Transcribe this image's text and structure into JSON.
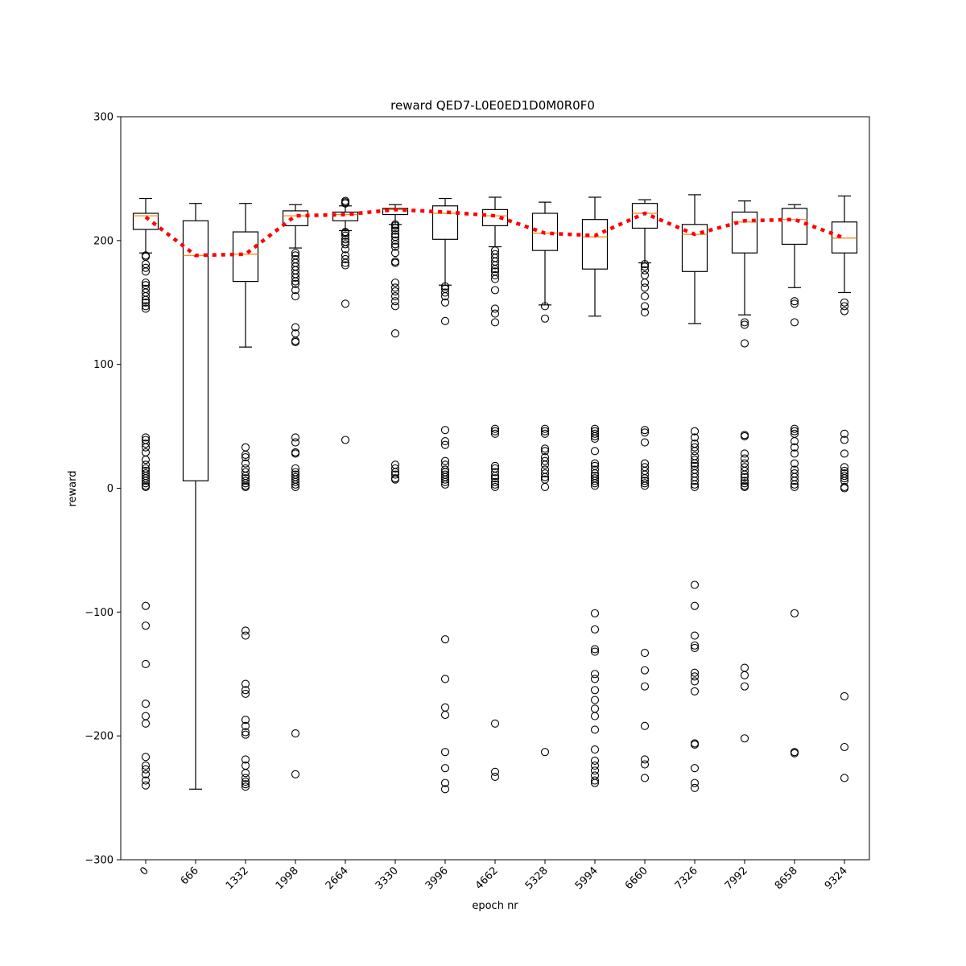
{
  "chart_data": {
    "type": "box",
    "title": "reward QED7-L0E0ED1D0M0R0F0",
    "xlabel": "epoch nr",
    "ylabel": "reward",
    "ylim": [
      -300,
      300
    ],
    "yticks": [
      -300,
      -200,
      -100,
      0,
      100,
      200,
      300
    ],
    "ytick_labels": [
      "−300",
      "−200",
      "−100",
      "0",
      "100",
      "200",
      "300"
    ],
    "grid": false,
    "colors": {
      "box": "#000000",
      "median": "#ff7f0e",
      "mean_line": "#ff0000"
    },
    "boxes": [
      {
        "epoch": "0",
        "q1": 209,
        "median": 220,
        "q3": 222,
        "whisker_low": 190,
        "whisker_high": 234,
        "outliers": [
          188,
          187,
          181,
          178,
          175,
          166,
          164,
          161,
          158,
          155,
          152,
          150,
          147,
          145,
          41,
          39,
          36,
          33,
          29,
          23,
          19,
          16,
          14,
          12,
          10,
          8,
          6,
          4,
          2,
          1,
          -95,
          -111,
          -142,
          -174,
          -184,
          -190,
          -217,
          -224,
          -227,
          -231,
          -236,
          -240
        ]
      },
      {
        "epoch": "666",
        "q1": 6,
        "median": 188,
        "q3": 216,
        "whisker_low": -243,
        "whisker_high": 230,
        "outliers": []
      },
      {
        "epoch": "1332",
        "q1": 167,
        "median": 189,
        "q3": 207,
        "whisker_low": 114,
        "whisker_high": 230,
        "outliers": [
          33,
          27,
          25,
          20,
          16,
          13,
          10,
          8,
          6,
          4,
          2,
          1,
          -115,
          -119,
          -158,
          -163,
          -166,
          -187,
          -192,
          -197,
          -199,
          -219,
          -224,
          -230,
          -234,
          -237,
          -239,
          -241
        ]
      },
      {
        "epoch": "1998",
        "q1": 212,
        "median": 220,
        "q3": 224,
        "whisker_low": 194,
        "whisker_high": 229,
        "outliers": [
          190,
          188,
          185,
          182,
          179,
          176,
          173,
          170,
          167,
          165,
          160,
          155,
          130,
          125,
          119,
          118,
          41,
          37,
          29,
          28,
          16,
          13,
          11,
          9,
          7,
          5,
          3,
          1,
          -198,
          -231
        ]
      },
      {
        "epoch": "2664",
        "q1": 216,
        "median": 221,
        "q3": 223,
        "whisker_low": 208,
        "whisker_high": 228,
        "outliers": [
          232,
          231,
          230,
          207,
          206,
          204,
          201,
          199,
          197,
          193,
          188,
          185,
          182,
          180,
          149,
          39
        ]
      },
      {
        "epoch": "3330",
        "q1": 221,
        "median": 225,
        "q3": 226,
        "whisker_low": 213,
        "whisker_high": 229,
        "outliers": [
          213,
          212,
          210,
          208,
          205,
          203,
          200,
          197,
          195,
          190,
          183,
          182,
          166,
          162,
          159,
          155,
          151,
          147,
          125,
          19,
          16,
          13,
          11,
          8,
          7
        ]
      },
      {
        "epoch": "3996",
        "q1": 201,
        "median": 222,
        "q3": 228,
        "whisker_low": 164,
        "whisker_high": 234,
        "outliers": [
          163,
          161,
          158,
          155,
          150,
          135,
          47,
          38,
          35,
          22,
          19,
          15,
          13,
          11,
          9,
          7,
          5,
          3,
          -122,
          -154,
          -177,
          -183,
          -213,
          -226,
          -238,
          -243
        ]
      },
      {
        "epoch": "4662",
        "q1": 212,
        "median": 220,
        "q3": 225,
        "whisker_low": 195,
        "whisker_high": 235,
        "outliers": [
          192,
          189,
          186,
          183,
          180,
          177,
          175,
          172,
          169,
          160,
          145,
          141,
          134,
          48,
          46,
          44,
          18,
          16,
          13,
          10,
          8,
          5,
          3,
          1,
          -190,
          -229,
          -233
        ]
      },
      {
        "epoch": "5328",
        "q1": 192,
        "median": 206,
        "q3": 222,
        "whisker_low": 148,
        "whisker_high": 231,
        "outliers": [
          147,
          137,
          48,
          46,
          44,
          32,
          30,
          25,
          22,
          19,
          15,
          12,
          9,
          7,
          1,
          -213
        ]
      },
      {
        "epoch": "5994",
        "q1": 177,
        "median": 203,
        "q3": 217,
        "whisker_low": 139,
        "whisker_high": 235,
        "outliers": [
          48,
          46,
          44,
          42,
          40,
          30,
          20,
          18,
          15,
          12,
          10,
          8,
          6,
          4,
          2,
          -101,
          -114,
          -130,
          -132,
          -150,
          -154,
          -163,
          -171,
          -178,
          -184,
          -195,
          -211,
          -220,
          -224,
          -228,
          -232,
          -236,
          -238
        ]
      },
      {
        "epoch": "6660",
        "q1": 210,
        "median": 222,
        "q3": 230,
        "whisker_low": 182,
        "whisker_high": 233,
        "outliers": [
          181,
          179,
          176,
          172,
          166,
          162,
          155,
          147,
          142,
          47,
          45,
          37,
          20,
          17,
          14,
          11,
          8,
          6,
          4,
          2,
          -133,
          -147,
          -160,
          -192,
          -219,
          -223,
          -234
        ]
      },
      {
        "epoch": "7326",
        "q1": 175,
        "median": 205,
        "q3": 213,
        "whisker_low": 133,
        "whisker_high": 237,
        "outliers": [
          46,
          41,
          36,
          33,
          30,
          26,
          23,
          20,
          18,
          15,
          12,
          9,
          6,
          3,
          1,
          -78,
          -95,
          -119,
          -127,
          -129,
          -149,
          -152,
          -156,
          -164,
          -206,
          -207,
          -226,
          -238,
          -242
        ]
      },
      {
        "epoch": "7992",
        "q1": 190,
        "median": 215,
        "q3": 223,
        "whisker_low": 140,
        "whisker_high": 232,
        "outliers": [
          134,
          132,
          117,
          43,
          42,
          28,
          24,
          20,
          17,
          14,
          11,
          9,
          6,
          4,
          2,
          1,
          -145,
          -151,
          -160,
          -202
        ]
      },
      {
        "epoch": "8658",
        "q1": 197,
        "median": 217,
        "q3": 226,
        "whisker_low": 162,
        "whisker_high": 229,
        "outliers": [
          151,
          149,
          134,
          48,
          46,
          44,
          38,
          33,
          28,
          20,
          15,
          12,
          9,
          6,
          3,
          1,
          -101,
          -213,
          -214
        ]
      },
      {
        "epoch": "9324",
        "q1": 190,
        "median": 202,
        "q3": 215,
        "whisker_low": 158,
        "whisker_high": 236,
        "outliers": [
          150,
          147,
          143,
          44,
          39,
          28,
          17,
          14,
          12,
          10,
          8,
          6,
          1,
          0,
          -168,
          -209,
          -234
        ]
      }
    ],
    "mean_line": {
      "style": "dotted",
      "values": [
        219,
        188,
        189,
        220,
        221,
        225,
        223,
        220,
        206,
        204,
        222,
        205,
        216,
        217,
        202
      ]
    }
  }
}
